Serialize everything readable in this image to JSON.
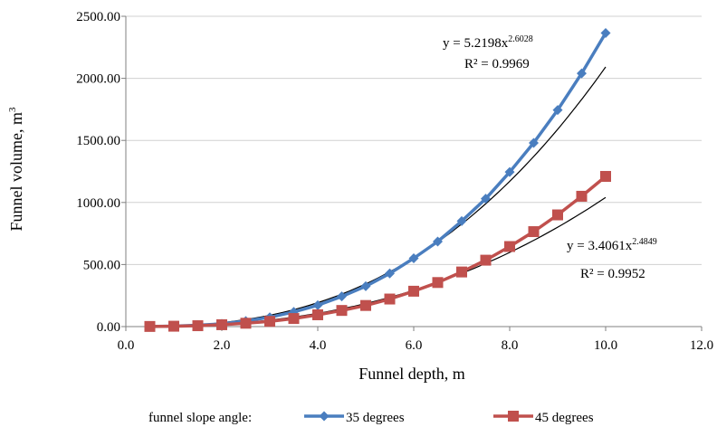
{
  "chart_data": {
    "type": "line",
    "title": "",
    "xlabel": "Funnel depth, m",
    "ylabel": "Funnel volume, m",
    "ylabel_sup": "3",
    "xlim": [
      0,
      12
    ],
    "ylim": [
      0,
      2500
    ],
    "x_ticks": [
      "0.0",
      "2.0",
      "4.0",
      "6.0",
      "8.0",
      "10.0",
      "12.0"
    ],
    "y_ticks": [
      "0.00",
      "500.00",
      "1000.00",
      "1500.00",
      "2000.00",
      "2500.00"
    ],
    "grid": "horizontal",
    "legend": {
      "position": "bottom",
      "title": "funnel slope angle:"
    },
    "x": [
      0.5,
      1.0,
      1.5,
      2.0,
      2.5,
      3.0,
      3.5,
      4.0,
      4.5,
      5.0,
      5.5,
      6.0,
      6.5,
      7.0,
      7.5,
      8.0,
      8.5,
      9.0,
      9.5,
      10.0
    ],
    "series": [
      {
        "name": "35 degrees",
        "color": "#4a7ebf",
        "marker": "diamond",
        "values": [
          1,
          4,
          11,
          22,
          45,
          75,
          118,
          172,
          243,
          325,
          428,
          550,
          685,
          850,
          1030,
          1245,
          1480,
          1745,
          2040,
          2365
        ],
        "trendline": {
          "type": "power",
          "a": 5.2198,
          "b": 2.6028,
          "equation_prefix": "y = 5.2198x",
          "equation_exp": "2.6028",
          "r2_label": "R² = 0.9969"
        }
      },
      {
        "name": "45 degrees",
        "color": "#c0504d",
        "marker": "square",
        "values": [
          1,
          3,
          7,
          15,
          27,
          42,
          65,
          95,
          130,
          170,
          222,
          285,
          355,
          440,
          535,
          645,
          765,
          900,
          1050,
          1210
        ],
        "trendline": {
          "type": "power",
          "a": 3.4061,
          "b": 2.4849,
          "equation_prefix": "y = 3.4061x",
          "equation_exp": "2.4849",
          "r2_label": "R² = 0.9952"
        }
      }
    ]
  }
}
